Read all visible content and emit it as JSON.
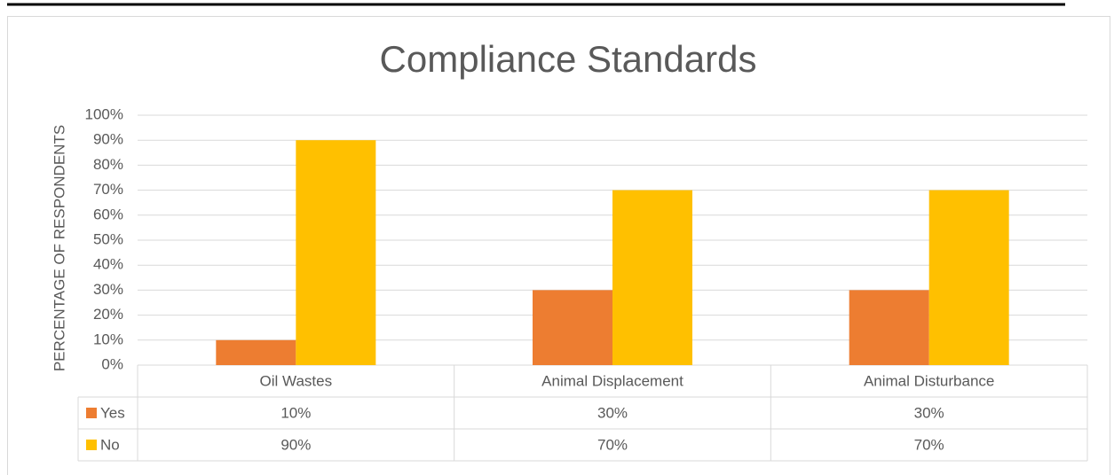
{
  "chart_data": {
    "type": "bar",
    "title": "Compliance Standards",
    "y_label": "PERCENTAGE OF RESPONDENTS",
    "categories": [
      "Oil Wastes",
      "Animal Displacement",
      "Animal Disturbance"
    ],
    "series": [
      {
        "name": "Yes",
        "color": "#ed7d31",
        "values": [
          10,
          30,
          30
        ],
        "value_labels": [
          "10%",
          "30%",
          "30%"
        ]
      },
      {
        "name": "No",
        "color": "#ffc000",
        "values": [
          90,
          70,
          70
        ],
        "value_labels": [
          "90%",
          "70%",
          "70%"
        ]
      }
    ],
    "ylim": [
      0,
      100
    ],
    "yticks": [
      {
        "value": 0,
        "label": "0%"
      },
      {
        "value": 10,
        "label": "10%"
      },
      {
        "value": 20,
        "label": "20%"
      },
      {
        "value": 30,
        "label": "30%"
      },
      {
        "value": 40,
        "label": "40%"
      },
      {
        "value": 50,
        "label": "50%"
      },
      {
        "value": 60,
        "label": "60%"
      },
      {
        "value": 70,
        "label": "70%"
      },
      {
        "value": 80,
        "label": "80%"
      },
      {
        "value": 90,
        "label": "90%"
      },
      {
        "value": 100,
        "label": "100%"
      }
    ],
    "grid": true
  }
}
